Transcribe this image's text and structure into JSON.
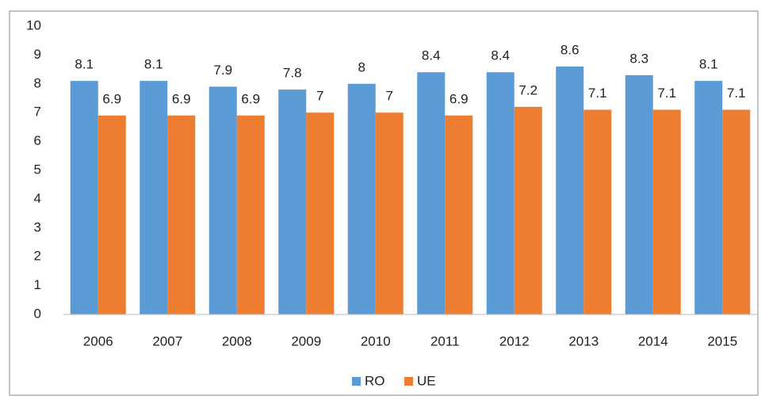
{
  "chart_data": {
    "type": "bar",
    "categories": [
      "2006",
      "2007",
      "2008",
      "2009",
      "2010",
      "2011",
      "2012",
      "2013",
      "2014",
      "2015"
    ],
    "series": [
      {
        "name": "RO",
        "color": "#5b9bd5",
        "values": [
          8.1,
          8.1,
          7.9,
          7.8,
          8,
          8.4,
          8.4,
          8.6,
          8.3,
          8.1
        ]
      },
      {
        "name": "UE",
        "color": "#ed7d31",
        "values": [
          6.9,
          6.9,
          6.9,
          7,
          7,
          6.9,
          7.2,
          7.1,
          7.1,
          7.1
        ]
      }
    ],
    "ylim": [
      0,
      10
    ],
    "yticks": [
      0,
      1,
      2,
      3,
      4,
      5,
      6,
      7,
      8,
      9,
      10
    ],
    "grid": false,
    "legend": "bottom"
  }
}
